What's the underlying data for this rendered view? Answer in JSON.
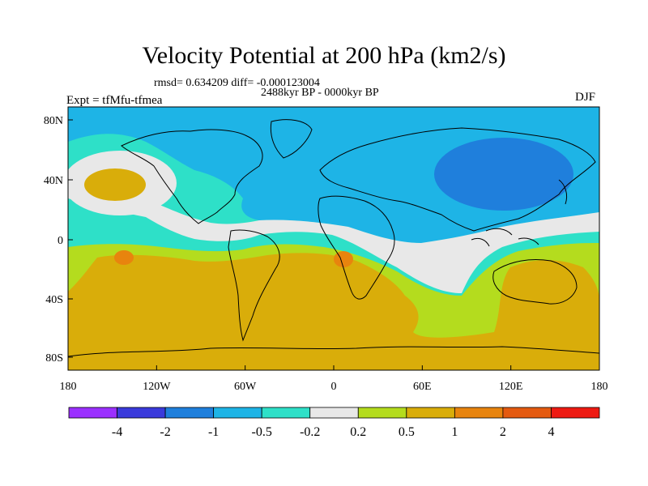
{
  "title": "Velocity Potential at 200 hPa (km2/s)",
  "stats_line": "rmsd= 0.634209 diff= -0.000123004",
  "period": "2488kyr BP - 0000kyr BP",
  "experiment": "Expt = tfMfu-tfmea",
  "season": "DJF",
  "map": {
    "lon_ticks": [
      "180",
      "120W",
      "60W",
      "0",
      "60E",
      "120E",
      "180"
    ],
    "lat_ticks": [
      "80N",
      "40N",
      "0",
      "40S",
      "80S"
    ]
  },
  "colorbar": {
    "bin_colors": [
      "#9b30ff",
      "#3a3adb",
      "#1f7fdc",
      "#1eb4e6",
      "#2ee0c8",
      "#e8e8e8",
      "#b4dc1e",
      "#d9ad0a",
      "#e8840e",
      "#e45a10",
      "#ee1a12"
    ],
    "labels": [
      "-4",
      "-2",
      "-1",
      "-0.5",
      "-0.2",
      "0.2",
      "0.5",
      "1",
      "2",
      "4"
    ]
  },
  "field_colors": {
    "strong_negative": "#1f7fdc",
    "negative": "#1eb4e6",
    "weak_negative": "#2ee0c8",
    "neutral": "#e8e8e8",
    "weak_positive": "#b4dc1e",
    "positive": "#d9ad0a",
    "strong_positive": "#e8840e"
  }
}
